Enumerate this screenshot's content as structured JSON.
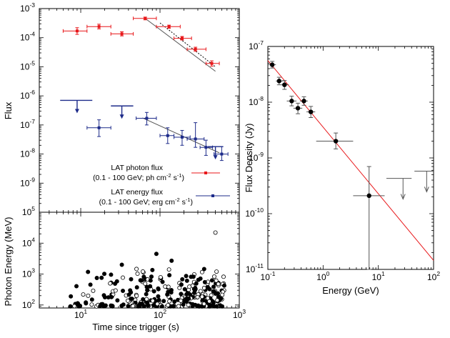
{
  "chart_data": [
    {
      "id": "flux_panel",
      "type": "scatter",
      "ylabel": "Flux",
      "xscale": "log",
      "yscale": "log",
      "xlim": [
        3,
        1000
      ],
      "ylim": [
        1e-10,
        0.001
      ],
      "y_ticks": [
        {
          "value": 0.001,
          "base": "10",
          "exp": "-3"
        },
        {
          "value": 0.0001,
          "base": "10",
          "exp": "-4"
        },
        {
          "value": 1e-05,
          "base": "10",
          "exp": "-5"
        },
        {
          "value": 1e-06,
          "base": "10",
          "exp": "-6"
        },
        {
          "value": 1e-07,
          "base": "10",
          "exp": "-7"
        },
        {
          "value": 1e-08,
          "base": "10",
          "exp": "-8"
        },
        {
          "value": 1e-09,
          "base": "10",
          "exp": "-9"
        }
      ],
      "series": [
        {
          "name": "LAT photon flux",
          "legend_line1": "LAT photon flux",
          "legend_line2_pre": "(0.1 - 100 GeV; ph cm",
          "legend_sup1": "-2",
          "legend_mid": " s",
          "legend_sup2": "-1",
          "legend_post": ")",
          "color": "#e8171a",
          "points": [
            {
              "x": 9,
              "xlo": 6,
              "xhi": 12,
              "y": 0.00017,
              "ylo": 0.00013,
              "yhi": 0.00022
            },
            {
              "x": 17,
              "xlo": 12,
              "xhi": 24,
              "y": 0.00024,
              "ylo": 0.0002,
              "yhi": 0.00029
            },
            {
              "x": 33,
              "xlo": 24,
              "xhi": 46,
              "y": 0.000135,
              "ylo": 0.000115,
              "yhi": 0.00016
            },
            {
              "x": 65,
              "xlo": 46,
              "xhi": 90,
              "y": 0.00046,
              "ylo": 0.00041,
              "yhi": 0.00051
            },
            {
              "x": 130,
              "xlo": 90,
              "xhi": 180,
              "y": 0.00024,
              "ylo": 0.00021,
              "yhi": 0.00027
            },
            {
              "x": 190,
              "xlo": 150,
              "xhi": 250,
              "y": 9.5e-05,
              "ylo": 8.3e-05,
              "yhi": 0.00011
            },
            {
              "x": 280,
              "xlo": 220,
              "xhi": 380,
              "y": 4e-05,
              "ylo": 3.4e-05,
              "yhi": 4.7e-05
            },
            {
              "x": 450,
              "xlo": 380,
              "xhi": 560,
              "y": 1.3e-05,
              "ylo": 1.05e-05,
              "yhi": 1.6e-05
            }
          ],
          "fit_solid": [
            [
              65,
              0.00046
            ],
            [
              500,
              7e-06
            ]
          ],
          "fit_dotted": [
            [
              100,
              0.00032
            ],
            [
              500,
              1e-05
            ]
          ]
        },
        {
          "name": "LAT energy flux",
          "legend_line1": "LAT energy flux",
          "legend_line2_pre": "(0.1 - 100 GeV; erg cm",
          "legend_sup1": "-2",
          "legend_mid": " s",
          "legend_sup2": "-1",
          "legend_post": ")",
          "color": "#1d2b8a",
          "upper_limits": [
            {
              "x": 9,
              "xlo": 5.5,
              "xhi": 14,
              "y": 7e-07
            },
            {
              "x": 33,
              "xlo": 24,
              "xhi": 46,
              "y": 4.5e-07
            },
            {
              "x": 500,
              "xlo": 400,
              "xhi": 620,
              "y": 1.8e-08
            }
          ],
          "points": [
            {
              "x": 17,
              "xlo": 12,
              "xhi": 24,
              "y": 8e-08,
              "ylo": 4e-08,
              "yhi": 1.5e-07
            },
            {
              "x": 68,
              "xlo": 50,
              "xhi": 90,
              "y": 1.7e-07,
              "ylo": 1e-07,
              "yhi": 2.7e-07
            },
            {
              "x": 125,
              "xlo": 100,
              "xhi": 150,
              "y": 4.3e-08,
              "ylo": 2.3e-08,
              "yhi": 8e-08
            },
            {
              "x": 190,
              "xlo": 150,
              "xhi": 240,
              "y": 3.8e-08,
              "ylo": 2e-08,
              "yhi": 6.5e-08
            },
            {
              "x": 280,
              "xlo": 220,
              "xhi": 360,
              "y": 3.3e-08,
              "ylo": 1.7e-08,
              "yhi": 1.2e-07
            },
            {
              "x": 380,
              "xlo": 320,
              "xhi": 460,
              "y": 1.7e-08,
              "ylo": 9e-09,
              "yhi": 3e-08
            },
            {
              "x": 600,
              "xlo": 480,
              "xhi": 720,
              "y": 1e-08,
              "ylo": 6e-09,
              "yhi": 1.8e-08
            }
          ],
          "fit_solid": [
            [
              60,
              1.75e-07
            ],
            [
              560,
              1.1e-08
            ]
          ]
        }
      ]
    },
    {
      "id": "photon_energy_panel",
      "type": "scatter",
      "xlabel": "Time since trigger (s)",
      "ylabel": "Photon Energy (MeV)",
      "xscale": "log",
      "yscale": "log",
      "xlim": [
        3,
        1000
      ],
      "ylim": [
        80,
        100000
      ],
      "x_ticks": [
        {
          "value": 10,
          "base": "10",
          "exp": "1"
        },
        {
          "value": 100,
          "base": "10",
          "exp": "2"
        },
        {
          "value": 1000,
          "base": "10",
          "exp": "3"
        }
      ],
      "y_ticks": [
        {
          "value": 100,
          "base": "10",
          "exp": "2"
        },
        {
          "value": 1000,
          "base": "10",
          "exp": "3"
        },
        {
          "value": 10000,
          "base": "10",
          "exp": "4"
        },
        {
          "value": 100000,
          "base": "10",
          "exp": "5"
        }
      ],
      "notable_points": [
        {
          "x": 7.5,
          "y": 190,
          "filled": true
        },
        {
          "x": 90,
          "y": 4500,
          "filled": true
        },
        {
          "x": 140,
          "y": 2700,
          "filled": true
        },
        {
          "x": 500,
          "y": 22000,
          "filled": false
        },
        {
          "x": 33,
          "y": 2000,
          "filled": true
        }
      ],
      "cluster": {
        "n": 300,
        "x_min": 7,
        "x_max": 650,
        "y_min": 90,
        "y_max": 1500,
        "filled_fraction": 0.6
      }
    },
    {
      "id": "spectrum_panel",
      "type": "scatter",
      "xlabel": "Energy (GeV)",
      "ylabel": "Flux Density (Jy)",
      "xscale": "log",
      "yscale": "log",
      "xlim": [
        0.1,
        100
      ],
      "ylim": [
        1e-11,
        1e-07
      ],
      "x_ticks": [
        {
          "value": 0.1,
          "base": "10",
          "exp": "-1"
        },
        {
          "value": 1,
          "base": "10",
          "exp": "0"
        },
        {
          "value": 10,
          "base": "10",
          "exp": "1"
        },
        {
          "value": 100,
          "base": "10",
          "exp": "2"
        }
      ],
      "y_ticks": [
        {
          "value": 1e-07,
          "base": "10",
          "exp": "-7"
        },
        {
          "value": 1e-08,
          "base": "10",
          "exp": "-8"
        },
        {
          "value": 1e-09,
          "base": "10",
          "exp": "-9"
        },
        {
          "value": 1e-10,
          "base": "10",
          "exp": "-10"
        },
        {
          "value": 1e-11,
          "base": "10",
          "exp": "-11"
        }
      ],
      "points": [
        {
          "x": 0.12,
          "xlo": 0.1,
          "xhi": 0.14,
          "y": 4.7e-08,
          "ylo": 4.1e-08,
          "yhi": 5.4e-08
        },
        {
          "x": 0.16,
          "xlo": 0.14,
          "xhi": 0.19,
          "y": 2.4e-08,
          "ylo": 2.05e-08,
          "yhi": 2.8e-08
        },
        {
          "x": 0.2,
          "xlo": 0.17,
          "xhi": 0.24,
          "y": 2.05e-08,
          "ylo": 1.7e-08,
          "yhi": 2.45e-08
        },
        {
          "x": 0.27,
          "xlo": 0.22,
          "xhi": 0.33,
          "y": 1.05e-08,
          "ylo": 8.6e-09,
          "yhi": 1.28e-08
        },
        {
          "x": 0.35,
          "xlo": 0.29,
          "xhi": 0.42,
          "y": 7.8e-09,
          "ylo": 6.2e-09,
          "yhi": 9.6e-09
        },
        {
          "x": 0.45,
          "xlo": 0.38,
          "xhi": 0.53,
          "y": 1.05e-08,
          "ylo": 8.8e-09,
          "yhi": 1.25e-08
        },
        {
          "x": 0.6,
          "xlo": 0.5,
          "xhi": 0.72,
          "y": 6.7e-09,
          "ylo": 5.3e-09,
          "yhi": 8.4e-09
        },
        {
          "x": 1.7,
          "xlo": 0.75,
          "xhi": 3.5,
          "y": 2e-09,
          "ylo": 1.45e-09,
          "yhi": 2.8e-09
        },
        {
          "x": 6.8,
          "xlo": 3.5,
          "xhi": 13,
          "y": 2.1e-10,
          "ylo": 1e-11,
          "yhi": 7e-10
        }
      ],
      "upper_limits": [
        {
          "x": 28,
          "xlo": 14,
          "xhi": 40,
          "y": 4.3e-10
        },
        {
          "x": 75,
          "xlo": 45,
          "xhi": 100,
          "y": 5.8e-10
        }
      ],
      "fit": [
        [
          0.1,
          5.6e-08
        ],
        [
          100,
          1.45e-11
        ]
      ],
      "fit_color": "#e8171a"
    }
  ]
}
